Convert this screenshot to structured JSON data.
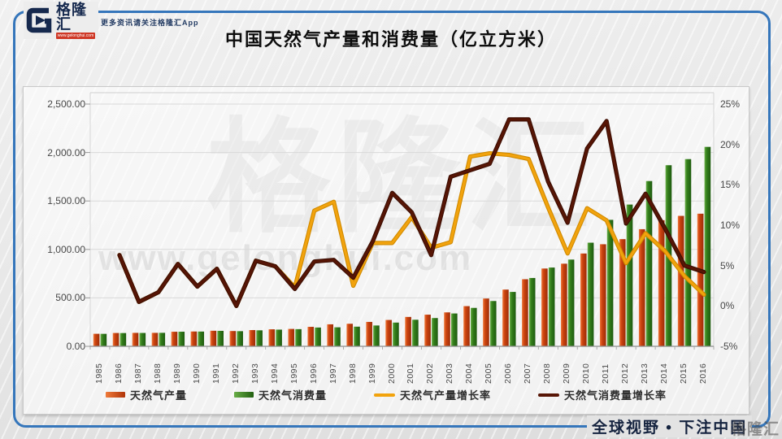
{
  "header": {
    "logo": {
      "g_glyph": "G",
      "brand": "格隆汇",
      "brand_url": "www.gelonghui.com",
      "tagline": "更多资讯请关注格隆汇App"
    },
    "title": "中国天然气产量和消费量（亿立方米）"
  },
  "watermarks": {
    "center_brand": "格隆汇",
    "center_url": "www.gelonghui.com",
    "corner_brand": "格隆汇"
  },
  "footer": {
    "slogan": "全球视野 • 下注中国"
  },
  "colors": {
    "frame_blue": "#3576bb",
    "brand_navy": "#16294e",
    "brand_red": "#cf3826",
    "bar_production": "#c8400e",
    "bar_consumption": "#2f7a1b",
    "line_production_growth": "#f2a30d",
    "line_consumption_growth": "#571505",
    "gridline": "#d9d9d9",
    "axis_line": "#8f8f8f"
  },
  "chart_data": {
    "type": "bar",
    "subtype": "combo-bar-line-dual-axis",
    "title": "中国天然气产量和消费量（亿立方米）",
    "categories": [
      "1985",
      "1986",
      "1987",
      "1988",
      "1989",
      "1990",
      "1991",
      "1992",
      "1993",
      "1994",
      "1995",
      "1996",
      "1997",
      "1998",
      "1999",
      "2000",
      "2001",
      "2002",
      "2003",
      "2004",
      "2005",
      "2006",
      "2007",
      "2008",
      "2009",
      "2010",
      "2011",
      "2012",
      "2013",
      "2014",
      "2015",
      "2016"
    ],
    "series": [
      {
        "name": "天然气产量",
        "render": "bar",
        "axis": "left",
        "color": "#c8400e",
        "values": [
          129.3,
          137.6,
          138.9,
          139.1,
          150.5,
          153,
          160.7,
          157.9,
          167.7,
          175.6,
          179.5,
          201.1,
          227,
          232.8,
          252,
          272,
          303.3,
          326.6,
          350.2,
          414.6,
          493.2,
          585.5,
          692.4,
          803,
          852.7,
          957.9,
          1053.4,
          1106.1,
          1208.6,
          1301.6,
          1346.1,
          1368.7
        ]
      },
      {
        "name": "天然气消费量",
        "render": "bar",
        "axis": "left",
        "color": "#2f7a1b",
        "values": [
          128.9,
          137,
          138.1,
          139.4,
          150.8,
          152.4,
          159.7,
          156.3,
          165.2,
          172.3,
          177.3,
          194,
          196.3,
          203,
          215,
          245,
          274.3,
          291.8,
          339.1,
          396.7,
          467.6,
          561.4,
          705.2,
          812.9,
          895.2,
          1069.4,
          1305.3,
          1463,
          1705.4,
          1868.9,
          1931.8,
          2058.1
        ]
      },
      {
        "name": "天然气产量增长率",
        "render": "line",
        "axis": "right",
        "unit": "%",
        "color": "#f2a30d",
        "values": [
          null,
          6.3,
          0.5,
          1.7,
          5.2,
          2.4,
          4.6,
          0,
          5.6,
          4.9,
          2.3,
          11.8,
          12.9,
          2.5,
          7.8,
          7.8,
          11,
          7.2,
          7.9,
          18.5,
          18.9,
          18.7,
          18.2,
          12.2,
          6.5,
          12.1,
          10.6,
          5.3,
          9,
          6.8,
          3.7,
          1.4
        ]
      },
      {
        "name": "天然气消费量增长率",
        "render": "line",
        "axis": "right",
        "unit": "%",
        "color": "#571505",
        "values": [
          null,
          6.3,
          0.5,
          1.7,
          5.2,
          2.4,
          4.6,
          0,
          5.6,
          4.9,
          2.1,
          5.5,
          5.7,
          3.5,
          8,
          14,
          11.6,
          6.3,
          16,
          16.8,
          17.6,
          23.1,
          23.1,
          15.4,
          10.3,
          19.5,
          22.9,
          10.2,
          13.9,
          9.6,
          5,
          4.2
        ]
      }
    ],
    "left_axis": {
      "min": 0,
      "max": 2500,
      "ticks": [
        "2,500.00",
        "2,000.00",
        "1,500.00",
        "1,000.00",
        "500.00",
        "0.00"
      ]
    },
    "right_axis": {
      "min": -5,
      "max": 25,
      "ticks": [
        "25%",
        "20%",
        "15%",
        "10%",
        "5%",
        "0%",
        "-5%"
      ]
    },
    "grid": true,
    "legend_position": "bottom"
  }
}
